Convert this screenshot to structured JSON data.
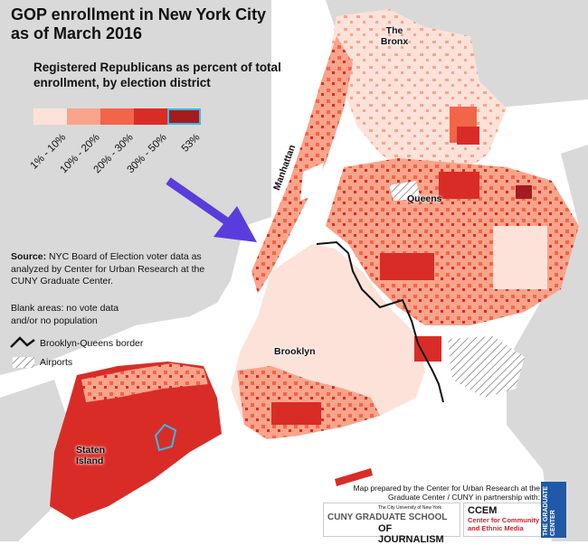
{
  "title": "GOP enrollment in New York City as of March 2016",
  "subtitle": "Registered Republicans as percent of total enrollment, by election district",
  "legend": {
    "bins": [
      {
        "label": "1% - 10%",
        "color": "#fde2d9"
      },
      {
        "label": "10% - 20%",
        "color": "#f9a48b"
      },
      {
        "label": "20% - 30%",
        "color": "#f26549"
      },
      {
        "label": "30% - 50%",
        "color": "#d92c27"
      },
      {
        "label": "53%",
        "color": "#a51c1e",
        "highlight": true
      }
    ]
  },
  "source": {
    "label": "Source:",
    "text": "NYC Board of Election voter data as analyzed by Center for Urban Research at the CUNY Graduate Center."
  },
  "blank_note": "Blank areas: no vote data and/or no population",
  "border_legend": "Brooklyn-Queens border",
  "airports_legend": "Airports",
  "boroughs": {
    "bronx": "The Bronx",
    "manhattan": "Manhattan",
    "queens": "Queens",
    "brooklyn": "Brooklyn",
    "staten_island": "Staten Island"
  },
  "credit": "Map prepared by the Center for Urban Research at the Graduate Center / CUNY in partnership with:",
  "logos": {
    "cuny_small": "The City University of New York",
    "cuny_line1": "CUNY GRADUATE SCHOOL",
    "cuny_line2": "OF JOURNALISM",
    "ccem_abbr": "CCEM",
    "ccem_line1": "Center for Community",
    "ccem_line2": "and Ethnic Media",
    "gc_line1": "THE",
    "gc_line2": "GRADUATE",
    "gc_line3": "CENTER"
  },
  "colors": {
    "background_land": "#d9d9d9",
    "water": "#ffffff",
    "arrow": "#5a3cdc",
    "highlight_border": "#3ab8e6",
    "border_line": "#111111"
  },
  "icons": {
    "arrow": "arrow-icon",
    "border": "zigzag-line-icon",
    "airport": "hatch-icon"
  }
}
